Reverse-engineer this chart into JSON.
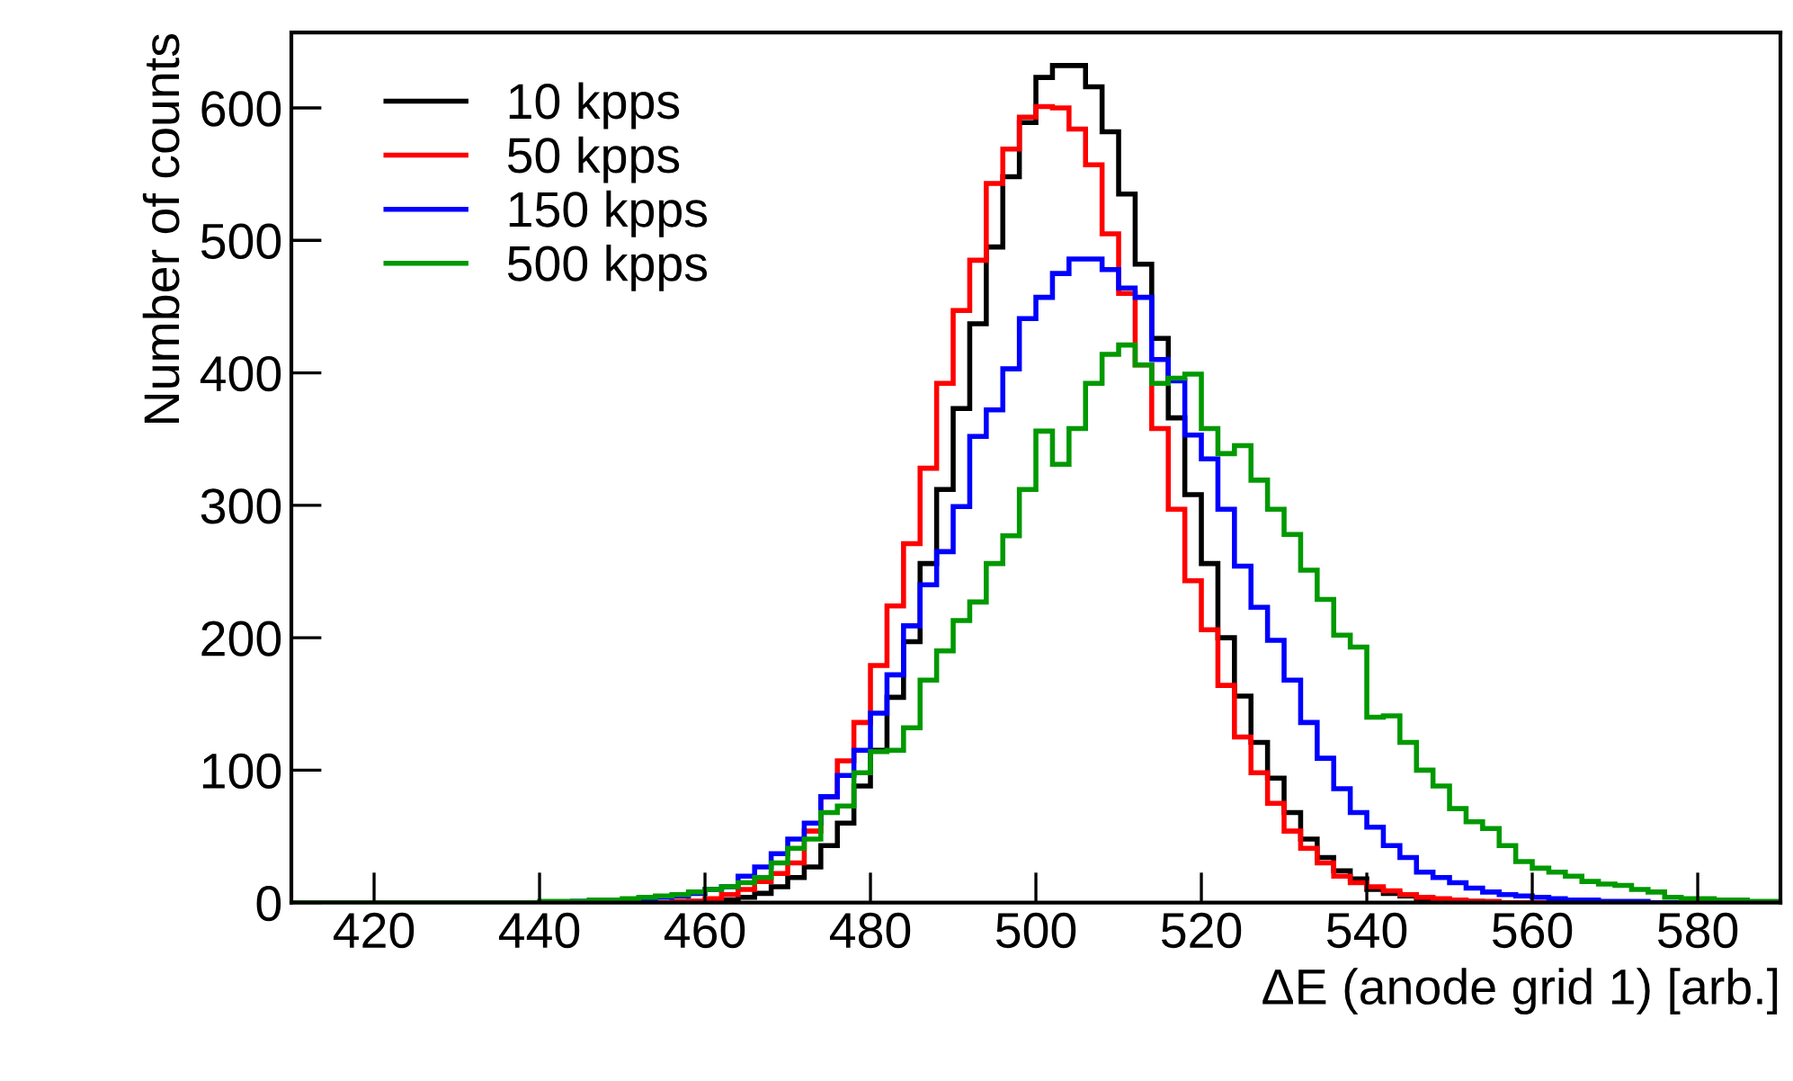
{
  "chart_data": {
    "type": "histogram",
    "xlabel": "ΔE (anode grid 1) [arb.]",
    "ylabel": "Number of counts",
    "bins": [
      410,
      412,
      414,
      416,
      418,
      420,
      422,
      424,
      426,
      428,
      430,
      432,
      434,
      436,
      438,
      440,
      442,
      444,
      446,
      448,
      450,
      452,
      454,
      456,
      458,
      460,
      462,
      464,
      466,
      468,
      470,
      472,
      474,
      476,
      478,
      480,
      482,
      484,
      486,
      488,
      490,
      492,
      494,
      496,
      498,
      500,
      502,
      504,
      506,
      508,
      510,
      512,
      514,
      516,
      518,
      520,
      522,
      524,
      526,
      528,
      530,
      532,
      534,
      536,
      538,
      540,
      542,
      544,
      546,
      548,
      550,
      552,
      554,
      556,
      558,
      560,
      562,
      564,
      566,
      568,
      570,
      572,
      574,
      576,
      578,
      580,
      582,
      584,
      586,
      588,
      590
    ],
    "series": [
      {
        "name": "10 kpps",
        "color": "#000000",
        "values": [
          0,
          0,
          0,
          0,
          0,
          0,
          0,
          0,
          0,
          0,
          0,
          0,
          0,
          0,
          0,
          0,
          0,
          0,
          0,
          0,
          0,
          0,
          0,
          0,
          1,
          1,
          2,
          4,
          7,
          12,
          19,
          27,
          43,
          60,
          88,
          115,
          155,
          197,
          256,
          312,
          373,
          437,
          495,
          548,
          589,
          623,
          632,
          632,
          616,
          582,
          535,
          482,
          426,
          366,
          308,
          256,
          200,
          156,
          121,
          94,
          68,
          48,
          34,
          24,
          18,
          10,
          7,
          5,
          3,
          2,
          1,
          1,
          0,
          0,
          0,
          0,
          0,
          0,
          0,
          0,
          0,
          0,
          0,
          0,
          0,
          0,
          0,
          0,
          0,
          0
        ]
      },
      {
        "name": "50 kpps",
        "color": "#ff0000",
        "values": [
          0,
          0,
          0,
          0,
          0,
          0,
          0,
          0,
          0,
          0,
          0,
          0,
          0,
          0,
          0,
          0,
          0,
          0,
          0,
          0,
          0,
          0,
          0,
          1,
          1,
          3,
          6,
          10,
          16,
          22,
          30,
          54,
          80,
          107,
          136,
          179,
          224,
          271,
          328,
          392,
          447,
          485,
          543,
          569,
          593,
          601,
          600,
          584,
          557,
          505,
          460,
          406,
          358,
          297,
          243,
          206,
          164,
          125,
          98,
          75,
          54,
          41,
          30,
          20,
          15,
          12,
          9,
          6,
          4,
          3,
          2,
          1,
          1,
          0,
          0,
          0,
          0,
          0,
          0,
          0,
          0,
          0,
          0,
          0,
          0,
          0,
          0,
          0,
          0,
          0
        ]
      },
      {
        "name": "150 kpps",
        "color": "#0000ff",
        "values": [
          0,
          0,
          0,
          0,
          0,
          0,
          0,
          0,
          0,
          0,
          0,
          0,
          0,
          0,
          0,
          0,
          0,
          1,
          1,
          1,
          2,
          3,
          4,
          5,
          7,
          10,
          12,
          20,
          27,
          37,
          48,
          60,
          80,
          96,
          115,
          143,
          172,
          209,
          240,
          265,
          299,
          352,
          372,
          403,
          441,
          457,
          475,
          486,
          486,
          478,
          464,
          457,
          410,
          394,
          353,
          335,
          297,
          254,
          223,
          198,
          168,
          136,
          109,
          86,
          68,
          57,
          43,
          34,
          23,
          19,
          15,
          11,
          8,
          6,
          5,
          4,
          3,
          2,
          2,
          1,
          1,
          1,
          0,
          0,
          0,
          0,
          0,
          0,
          0,
          0
        ]
      },
      {
        "name": "500 kpps",
        "color": "#009900",
        "values": [
          0,
          0,
          0,
          0,
          0,
          0,
          0,
          0,
          0,
          0,
          0,
          0,
          0,
          0,
          0,
          1,
          1,
          1,
          2,
          2,
          3,
          4,
          5,
          6,
          8,
          10,
          12,
          15,
          19,
          30,
          41,
          48,
          68,
          73,
          98,
          114,
          115,
          132,
          168,
          190,
          213,
          227,
          256,
          277,
          312,
          356,
          331,
          358,
          392,
          414,
          421,
          406,
          392,
          396,
          399,
          358,
          339,
          345,
          319,
          297,
          278,
          251,
          229,
          202,
          193,
          140,
          141,
          121,
          100,
          88,
          71,
          61,
          56,
          43,
          31,
          26,
          23,
          20,
          16,
          14,
          13,
          10,
          8,
          4,
          3,
          3,
          2,
          2,
          1,
          1
        ]
      }
    ],
    "xlim": [
      410,
      590
    ],
    "xticks": [
      420,
      440,
      460,
      480,
      500,
      520,
      540,
      560,
      580
    ],
    "ylim": [
      0,
      657
    ],
    "yticks": [
      0,
      100,
      200,
      300,
      400,
      500,
      600
    ],
    "legend": "top left",
    "grid": false
  }
}
